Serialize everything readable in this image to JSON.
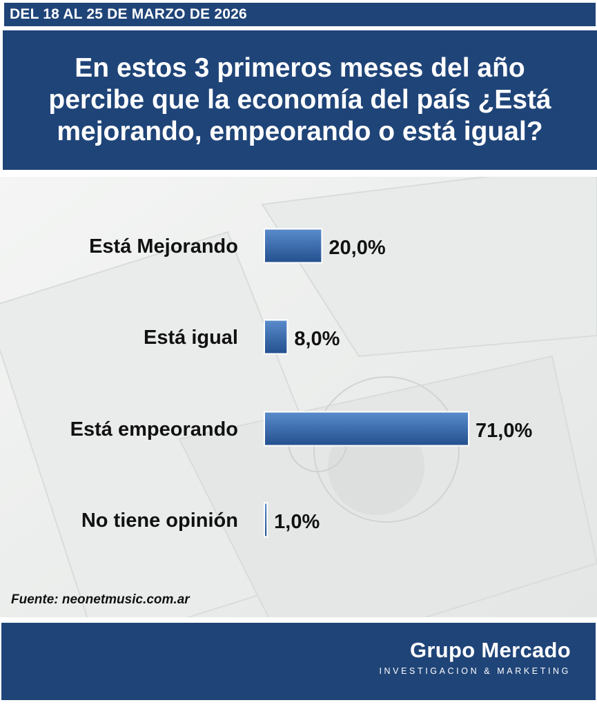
{
  "header": {
    "date_range": "DEL 18 AL 25 DE MARZO DE 2026",
    "question_lines": [
      "En estos 3 primeros meses del año",
      "percibe que la economía del país ¿Está",
      "mejorando, empeorando o está igual?"
    ]
  },
  "chart_data": {
    "type": "bar",
    "orientation": "horizontal",
    "categories": [
      "Está Mejorando",
      "Está igual",
      "Está empeorando",
      "No tiene opinión"
    ],
    "values": [
      20.0,
      8.0,
      71.0,
      1.0
    ],
    "value_labels": [
      "20,0%",
      "8,0%",
      "71,0%",
      "1,0%"
    ],
    "xlim": [
      0,
      71
    ],
    "bar_color": "#3a6aad",
    "grid": false,
    "legend": "none"
  },
  "source": "Fuente: neonetmusic.com.ar",
  "footer": {
    "brand_name": "Grupo Mercado",
    "brand_tagline": "INVESTIGACION & MARKETING"
  },
  "colors": {
    "header_bg": "#1f4478",
    "bar": "#3a6aad",
    "background": "#eef0ef"
  }
}
